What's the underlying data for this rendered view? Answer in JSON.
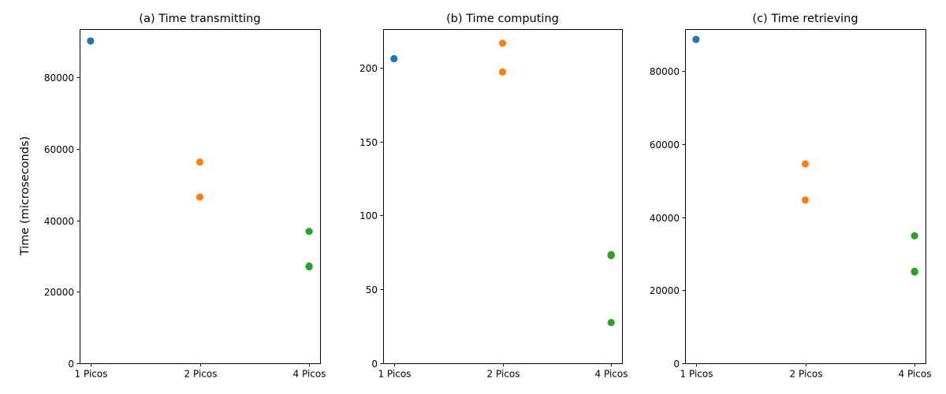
{
  "chart_data": [
    {
      "type": "scatter",
      "title": "(a) Time transmitting",
      "xlabel": "",
      "ylabel": "Time (microseconds)",
      "categories": [
        "1 Picos",
        "2 Picos",
        "4 Picos"
      ],
      "ylim": [
        0,
        93500
      ],
      "yticks": [
        0,
        20000,
        40000,
        60000,
        80000
      ],
      "ytick_labels": [
        "0",
        "20000",
        "40000",
        "60000",
        "80000"
      ],
      "grid": false,
      "series": [
        {
          "color": "#1f77b4",
          "points": [
            {
              "x": "1 Picos",
              "y": 90200
            }
          ]
        },
        {
          "color": "#ff7f0e",
          "points": [
            {
              "x": "2 Picos",
              "y": 56300
            },
            {
              "x": "2 Picos",
              "y": 46500
            }
          ]
        },
        {
          "color": "#2ca02c",
          "points": [
            {
              "x": "4 Picos",
              "y": 36900
            },
            {
              "x": "4 Picos",
              "y": 27200
            },
            {
              "x": "4 Picos",
              "y": 27000
            }
          ]
        }
      ]
    },
    {
      "type": "scatter",
      "title": "(b) Time computing",
      "xlabel": "",
      "ylabel": "",
      "categories": [
        "1 Picos",
        "2 Picos",
        "4 Picos"
      ],
      "ylim": [
        0,
        226
      ],
      "yticks": [
        0,
        50,
        100,
        150,
        200
      ],
      "ytick_labels": [
        "0",
        "50",
        "100",
        "150",
        "200"
      ],
      "grid": false,
      "series": [
        {
          "color": "#1f77b4",
          "points": [
            {
              "x": "1 Picos",
              "y": 206
            }
          ]
        },
        {
          "color": "#ff7f0e",
          "points": [
            {
              "x": "2 Picos",
              "y": 216.5
            },
            {
              "x": "2 Picos",
              "y": 197
            }
          ]
        },
        {
          "color": "#2ca02c",
          "points": [
            {
              "x": "4 Picos",
              "y": 73.5
            },
            {
              "x": "4 Picos",
              "y": 72.8
            },
            {
              "x": "4 Picos",
              "y": 27.5
            }
          ]
        }
      ]
    },
    {
      "type": "scatter",
      "title": "(c) Time retrieving",
      "xlabel": "",
      "ylabel": "",
      "categories": [
        "1 Picos",
        "2 Picos",
        "4 Picos"
      ],
      "ylim": [
        0,
        91500
      ],
      "yticks": [
        0,
        20000,
        40000,
        60000,
        80000
      ],
      "ytick_labels": [
        "0",
        "20000",
        "40000",
        "60000",
        "80000"
      ],
      "grid": false,
      "series": [
        {
          "color": "#1f77b4",
          "points": [
            {
              "x": "1 Picos",
              "y": 88700
            }
          ]
        },
        {
          "color": "#ff7f0e",
          "points": [
            {
              "x": "2 Picos",
              "y": 54600
            },
            {
              "x": "2 Picos",
              "y": 44700
            }
          ]
        },
        {
          "color": "#2ca02c",
          "points": [
            {
              "x": "4 Picos",
              "y": 34900
            },
            {
              "x": "4 Picos",
              "y": 25200
            },
            {
              "x": "4 Picos",
              "y": 25000
            }
          ]
        }
      ]
    }
  ]
}
